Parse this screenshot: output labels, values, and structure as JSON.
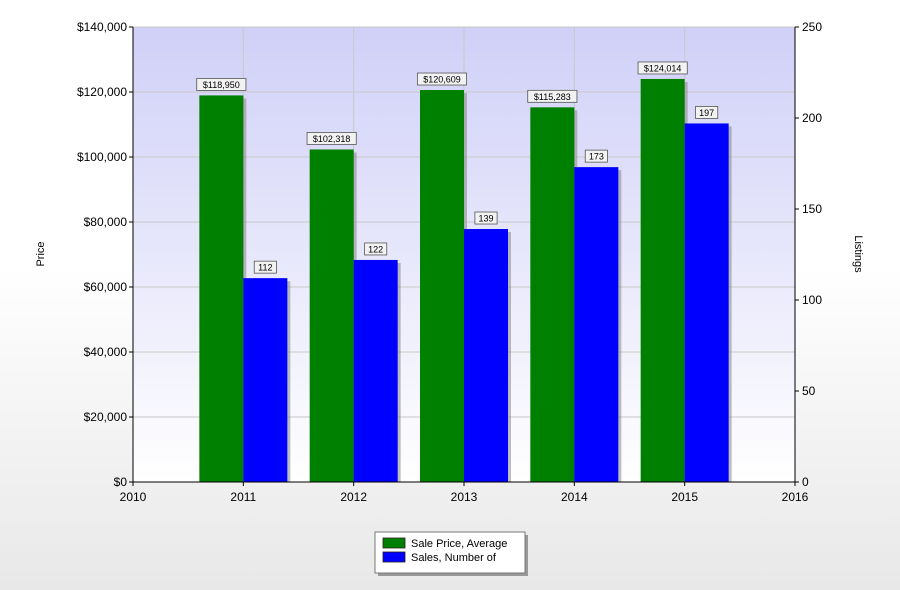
{
  "chart_data": {
    "type": "bar",
    "categories": [
      "2011",
      "2012",
      "2013",
      "2014",
      "2015"
    ],
    "x_ticks": [
      "2010",
      "2011",
      "2012",
      "2013",
      "2014",
      "2015",
      "2016"
    ],
    "series": [
      {
        "name": "Sale Price, Average",
        "axis": "left",
        "color": "#008000",
        "values": [
          118950,
          102318,
          120609,
          115283,
          124014
        ],
        "labels": [
          "$118,950",
          "$102,318",
          "$120,609",
          "$115,283",
          "$124,014"
        ]
      },
      {
        "name": "Sales, Number of",
        "axis": "right",
        "color": "#0000ff",
        "values": [
          112,
          122,
          139,
          173,
          197
        ],
        "labels": [
          "112",
          "122",
          "139",
          "173",
          "197"
        ]
      }
    ],
    "ylabel": "Price",
    "y2label": "Listings",
    "ylim": [
      0,
      140000
    ],
    "y2lim": [
      0,
      250
    ],
    "y_ticks": [
      {
        "value": 0,
        "label": "$0"
      },
      {
        "value": 20000,
        "label": "$20,000"
      },
      {
        "value": 40000,
        "label": "$40,000"
      },
      {
        "value": 60000,
        "label": "$60,000"
      },
      {
        "value": 80000,
        "label": "$80,000"
      },
      {
        "value": 100000,
        "label": "$100,000"
      },
      {
        "value": 120000,
        "label": "$120,000"
      },
      {
        "value": 140000,
        "label": "$140,000"
      }
    ],
    "y2_ticks": [
      {
        "value": 0,
        "label": "0"
      },
      {
        "value": 50,
        "label": "50"
      },
      {
        "value": 100,
        "label": "100"
      },
      {
        "value": 150,
        "label": "150"
      },
      {
        "value": 200,
        "label": "200"
      },
      {
        "value": 250,
        "label": "250"
      }
    ],
    "grid": true,
    "legend_position": "bottom-center",
    "plot_background": [
      "#ffffff",
      "#d0d0f8"
    ]
  }
}
